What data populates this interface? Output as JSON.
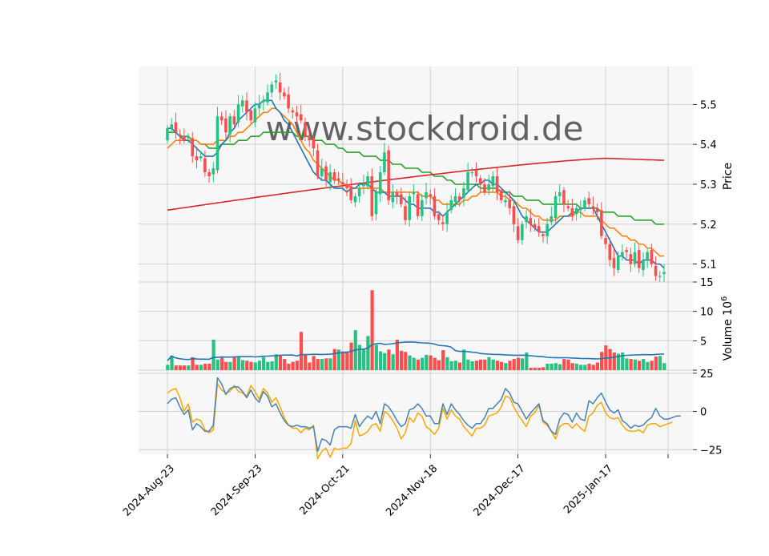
{
  "chart_data": {
    "type": "candlestick",
    "watermark": "www.stockdroid.de",
    "colors": {
      "up": "#26c281",
      "down": "#ff4d4d",
      "panel_bg": "#f7f7f7",
      "grid": "#d0d0d0",
      "ma_blue": "#1f77b4",
      "ma_orange": "#ff7f0e",
      "ma_green": "#2ca02c",
      "ma_red": "#d62728",
      "osc_blue": "#4682b4",
      "osc_orange": "#ffa500"
    },
    "x_ticks": [
      {
        "index": 0,
        "label": "2024-Aug-23"
      },
      {
        "index": 21,
        "label": "2024-Sep-23"
      },
      {
        "index": 42,
        "label": "2024-Oct-21"
      },
      {
        "index": 63,
        "label": "2024-Nov-18"
      },
      {
        "index": 84,
        "label": "2024-Dec-17"
      },
      {
        "index": 105,
        "label": "2025-Jan-17"
      }
    ],
    "price_panel": {
      "ylabel": "Price",
      "ylim": [
        5.055,
        5.595
      ],
      "yticks": [
        5.1,
        5.2,
        5.3,
        5.4,
        5.5
      ],
      "ytick_labels": [
        "5.1",
        "5.2",
        "5.3",
        "5.4",
        "5.5"
      ],
      "close": [
        5.44,
        5.45,
        5.43,
        5.42,
        5.41,
        5.42,
        5.37,
        5.36,
        5.37,
        5.33,
        5.32,
        5.34,
        5.47,
        5.46,
        5.43,
        5.47,
        5.45,
        5.5,
        5.51,
        5.48,
        5.46,
        5.49,
        5.5,
        5.51,
        5.53,
        5.55,
        5.56,
        5.53,
        5.52,
        5.49,
        5.48,
        5.47,
        5.46,
        5.42,
        5.41,
        5.39,
        5.32,
        5.34,
        5.31,
        5.33,
        5.31,
        5.31,
        5.3,
        5.29,
        5.26,
        5.27,
        5.29,
        5.3,
        5.32,
        5.22,
        5.28,
        5.33,
        5.38,
        5.26,
        5.28,
        5.27,
        5.25,
        5.21,
        5.27,
        5.28,
        5.22,
        5.26,
        5.28,
        5.27,
        5.22,
        5.21,
        5.2,
        5.23,
        5.26,
        5.27,
        5.26,
        5.29,
        5.33,
        5.33,
        5.32,
        5.3,
        5.28,
        5.3,
        5.32,
        5.28,
        5.26,
        5.26,
        5.24,
        5.2,
        5.16,
        5.2,
        5.22,
        5.2,
        5.19,
        5.18,
        5.17,
        5.2,
        5.22,
        5.27,
        5.28,
        5.25,
        5.24,
        5.22,
        5.24,
        5.24,
        5.26,
        5.25,
        5.24,
        5.23,
        5.17,
        5.15,
        5.11,
        5.09,
        5.12,
        5.13,
        5.13,
        5.1,
        5.13,
        5.09,
        5.11,
        5.13,
        5.1,
        5.07,
        5.07,
        5.08
      ],
      "ma_blue": [
        5.44,
        5.44,
        5.43,
        5.42,
        5.41,
        5.41,
        5.4,
        5.39,
        5.38,
        5.37,
        5.37,
        5.37,
        5.38,
        5.4,
        5.41,
        5.43,
        5.44,
        5.46,
        5.47,
        5.48,
        5.49,
        5.5,
        5.5,
        5.51,
        5.51,
        5.51,
        5.49,
        5.48,
        5.46,
        5.45,
        5.43,
        5.41,
        5.39,
        5.37,
        5.35,
        5.33,
        5.32,
        5.31,
        5.31,
        5.3,
        5.29,
        5.29,
        5.29,
        5.28,
        5.29,
        5.29,
        5.3,
        5.3,
        5.3,
        5.29,
        5.28,
        5.28,
        5.28,
        5.27,
        5.27,
        5.27,
        5.27,
        5.26,
        5.25,
        5.25,
        5.24,
        5.24,
        5.24,
        5.24,
        5.23,
        5.23,
        5.22,
        5.23,
        5.24,
        5.25,
        5.26,
        5.27,
        5.28,
        5.29,
        5.3,
        5.3,
        5.31,
        5.31,
        5.3,
        5.3,
        5.29,
        5.28,
        5.27,
        5.26,
        5.24,
        5.22,
        5.21,
        5.2,
        5.19,
        5.18,
        5.18,
        5.18,
        5.19,
        5.2,
        5.21,
        5.22,
        5.22,
        5.23,
        5.23,
        5.24,
        5.24,
        5.24,
        5.24,
        5.22,
        5.2,
        5.18,
        5.16,
        5.14,
        5.12,
        5.12,
        5.11,
        5.11,
        5.11,
        5.1,
        5.11,
        5.11,
        5.11,
        5.1,
        5.1,
        5.09
      ],
      "ma_orange": [
        5.39,
        5.4,
        5.41,
        5.41,
        5.41,
        5.41,
        5.41,
        5.41,
        5.4,
        5.4,
        5.4,
        5.4,
        5.41,
        5.41,
        5.41,
        5.42,
        5.42,
        5.43,
        5.43,
        5.44,
        5.45,
        5.46,
        5.47,
        5.48,
        5.48,
        5.49,
        5.49,
        5.48,
        5.47,
        5.46,
        5.45,
        5.43,
        5.41,
        5.39,
        5.38,
        5.36,
        5.35,
        5.34,
        5.33,
        5.32,
        5.31,
        5.31,
        5.3,
        5.3,
        5.29,
        5.29,
        5.29,
        5.29,
        5.29,
        5.29,
        5.29,
        5.29,
        5.28,
        5.28,
        5.28,
        5.28,
        5.28,
        5.28,
        5.28,
        5.28,
        5.28,
        5.27,
        5.27,
        5.27,
        5.26,
        5.26,
        5.25,
        5.25,
        5.25,
        5.25,
        5.25,
        5.26,
        5.26,
        5.27,
        5.27,
        5.28,
        5.28,
        5.28,
        5.28,
        5.28,
        5.27,
        5.27,
        5.26,
        5.26,
        5.25,
        5.24,
        5.24,
        5.23,
        5.22,
        5.22,
        5.21,
        5.21,
        5.21,
        5.21,
        5.22,
        5.22,
        5.22,
        5.22,
        5.23,
        5.23,
        5.22,
        5.22,
        5.22,
        5.22,
        5.21,
        5.2,
        5.19,
        5.19,
        5.18,
        5.17,
        5.17,
        5.16,
        5.16,
        5.15,
        5.15,
        5.14,
        5.14,
        5.13,
        5.12,
        5.12
      ],
      "ma_green": [
        5.43,
        5.43,
        5.43,
        5.42,
        5.42,
        5.42,
        5.41,
        5.41,
        5.4,
        5.4,
        5.39,
        5.39,
        5.39,
        5.4,
        5.4,
        5.4,
        5.4,
        5.41,
        5.41,
        5.41,
        5.42,
        5.42,
        5.42,
        5.43,
        5.43,
        5.43,
        5.43,
        5.43,
        5.43,
        5.43,
        5.43,
        5.42,
        5.42,
        5.42,
        5.42,
        5.41,
        5.41,
        5.41,
        5.4,
        5.4,
        5.4,
        5.39,
        5.39,
        5.38,
        5.38,
        5.38,
        5.38,
        5.37,
        5.37,
        5.37,
        5.37,
        5.36,
        5.36,
        5.36,
        5.35,
        5.35,
        5.35,
        5.34,
        5.34,
        5.34,
        5.34,
        5.33,
        5.33,
        5.33,
        5.32,
        5.32,
        5.32,
        5.31,
        5.31,
        5.3,
        5.3,
        5.3,
        5.3,
        5.3,
        5.3,
        5.29,
        5.29,
        5.29,
        5.29,
        5.29,
        5.28,
        5.28,
        5.28,
        5.27,
        5.27,
        5.27,
        5.26,
        5.26,
        5.26,
        5.26,
        5.25,
        5.25,
        5.25,
        5.25,
        5.25,
        5.25,
        5.25,
        5.25,
        5.25,
        5.24,
        5.24,
        5.24,
        5.24,
        5.24,
        5.23,
        5.23,
        5.23,
        5.23,
        5.22,
        5.22,
        5.22,
        5.22,
        5.21,
        5.21,
        5.21,
        5.21,
        5.21,
        5.2,
        5.2,
        5.2
      ],
      "ma_red_start": 5.235,
      "ma_red_peak_index": 105,
      "ma_red_peak": 5.365,
      "ma_red_end": 5.36
    },
    "volume_panel": {
      "ylabel": "Volume  10^6",
      "ylim": [
        0,
        15
      ],
      "yticks": [
        0,
        5,
        10,
        15
      ],
      "ytick_labels": [
        "",
        "5",
        "10",
        "15"
      ],
      "values": [
        0.9,
        2.5,
        0.8,
        0.8,
        0.8,
        0.8,
        2.2,
        0.9,
        0.9,
        1.1,
        1.1,
        5.2,
        1.8,
        2.1,
        1.4,
        1.4,
        2.2,
        2.2,
        1.7,
        1.6,
        1.4,
        1.3,
        1.6,
        2.2,
        1.4,
        1.5,
        2.7,
        2.5,
        1.9,
        1.1,
        1.4,
        1.6,
        6.5,
        2.6,
        1.3,
        2.4,
        1.9,
        1.9,
        2.0,
        2.0,
        3.6,
        3.5,
        3.2,
        3.2,
        4.7,
        6.8,
        4.3,
        3.5,
        5.8,
        13.6,
        4.3,
        3.2,
        2.9,
        3.5,
        2.7,
        5.2,
        3.3,
        3.1,
        2.5,
        2.1,
        1.8,
        2.1,
        2.6,
        2.5,
        2.1,
        1.7,
        3.4,
        2.2,
        1.5,
        1.6,
        1.3,
        3.5,
        1.8,
        1.5,
        1.6,
        1.8,
        1.8,
        2.2,
        1.8,
        1.6,
        1.4,
        1.2,
        1.6,
        1.9,
        2.1,
        2.0,
        3.0,
        0.4,
        0.4,
        0.4,
        0.5,
        1.1,
        1.1,
        1.2,
        1.0,
        1.9,
        1.8,
        1.2,
        1.1,
        0.9,
        0.9,
        1.1,
        0.9,
        1.3,
        3.1,
        4.2,
        3.6,
        3.0,
        2.8,
        3.0,
        2.0,
        1.9,
        1.8,
        1.6,
        1.9,
        1.4,
        1.6,
        2.3,
        2.4,
        1.2
      ]
    },
    "oscillator_panel": {
      "ylim": [
        -28,
        27
      ],
      "yticks": [
        -25,
        0,
        25
      ],
      "ytick_labels": [
        "−25",
        "0",
        "25"
      ],
      "blue": [
        5,
        8,
        9,
        3,
        -2,
        1,
        -12,
        -8,
        -10,
        -13,
        -13,
        -9,
        22,
        18,
        11,
        15,
        16,
        16,
        13,
        9,
        14,
        9,
        6,
        13,
        10,
        3,
        5,
        -1,
        -6,
        -9,
        -10,
        -9,
        -10,
        -10,
        -11,
        -10,
        -26,
        -18,
        -19,
        -22,
        -12,
        -10,
        -10,
        -10,
        -11,
        -2,
        -10,
        -6,
        -3,
        -5,
        0,
        -8,
        5,
        3,
        -1,
        -6,
        -10,
        -8,
        1,
        2,
        5,
        2,
        -3,
        -3,
        -8,
        -8,
        5,
        -2,
        5,
        1,
        -2,
        -6,
        -9,
        -11,
        -8,
        -8,
        -4,
        2,
        2,
        5,
        8,
        15,
        12,
        6,
        5,
        0,
        -5,
        -1,
        2,
        5,
        -6,
        -8,
        -13,
        -15,
        -5,
        -1,
        -2,
        -7,
        -1,
        -5,
        -6,
        7,
        5,
        9,
        12,
        6,
        1,
        -1,
        1,
        -6,
        -8,
        -11,
        -9,
        -10,
        -9,
        -6,
        -4,
        2,
        -3,
        -5,
        -5,
        -4,
        -3,
        -3
      ],
      "orange": [
        12,
        14,
        15,
        9,
        0,
        5,
        -7,
        -5,
        -6,
        -12,
        -14,
        -12,
        18,
        14,
        12,
        13,
        17,
        13,
        12,
        10,
        17,
        13,
        8,
        15,
        12,
        6,
        9,
        3,
        -4,
        -9,
        -11,
        -11,
        -14,
        -11,
        -12,
        -9,
        -31,
        -26,
        -24,
        -30,
        -24,
        -25,
        -24,
        -24,
        -21,
        -6,
        -16,
        -15,
        -13,
        -9,
        -8,
        -13,
        0,
        -2,
        -6,
        -11,
        -18,
        -14,
        -4,
        -7,
        -1,
        -3,
        -10,
        -12,
        -15,
        -11,
        2,
        -5,
        1,
        -3,
        -5,
        -10,
        -13,
        -16,
        -11,
        -11,
        -9,
        -3,
        -2,
        -1,
        3,
        10,
        9,
        3,
        -2,
        -6,
        -10,
        -3,
        -1,
        4,
        -7,
        -9,
        -13,
        -18,
        -10,
        -8,
        -8,
        -11,
        -8,
        -11,
        -13,
        -3,
        -1,
        4,
        6,
        -1,
        -4,
        -5,
        -4,
        -9,
        -12,
        -13,
        -13,
        -12,
        -14,
        -9,
        -8,
        -8,
        -10,
        -9,
        -8,
        -7
      ]
    }
  }
}
